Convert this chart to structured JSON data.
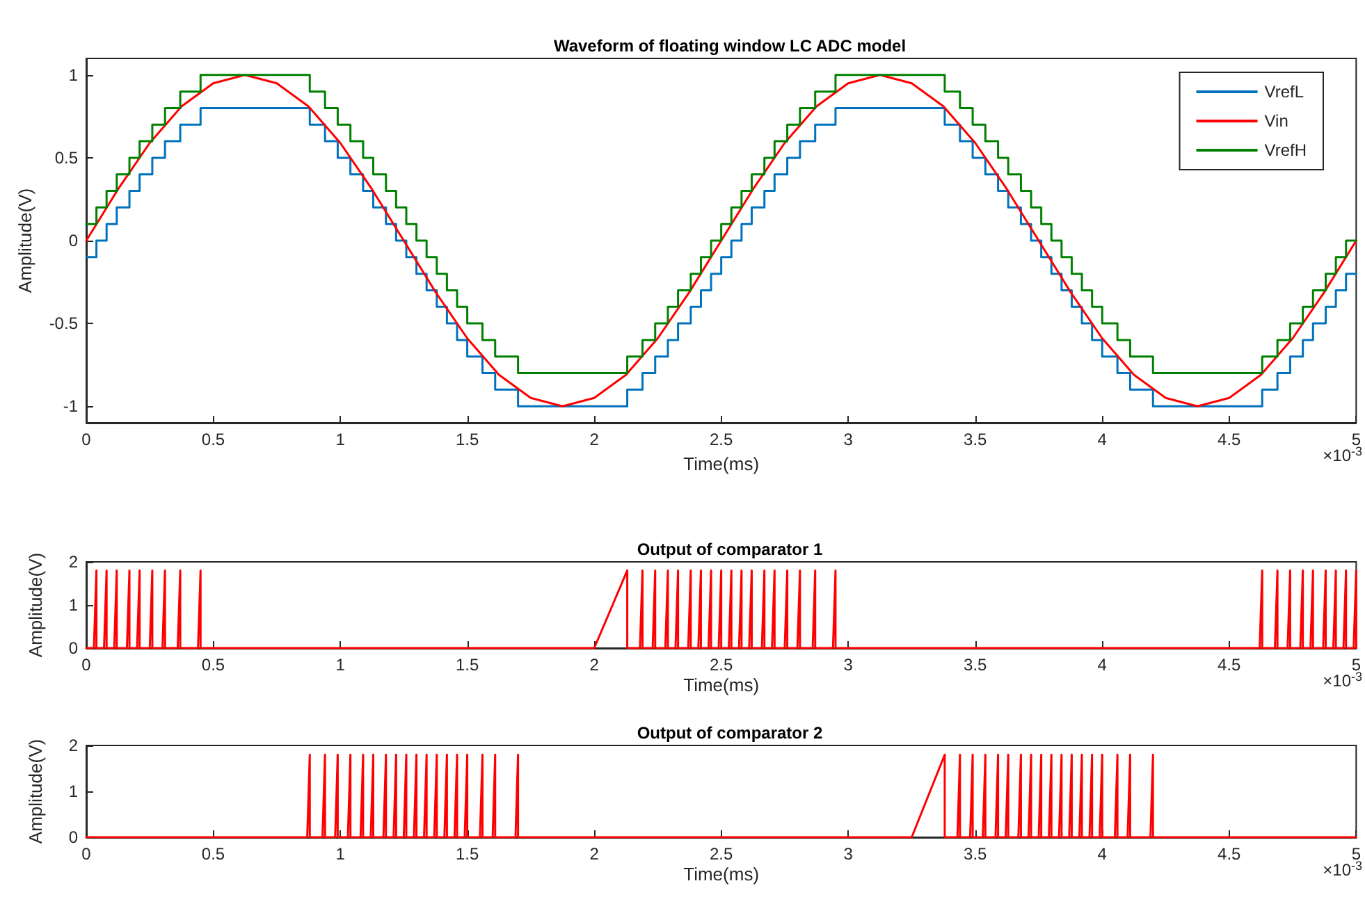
{
  "chart_data": [
    {
      "type": "line",
      "title": "Waveform of floating window LC ADC model",
      "xlabel": "Time(ms)",
      "ylabel": "Amplitude(V)",
      "annotations": [
        "×10$^{-3}$"
      ],
      "xlim": [
        0,
        5
      ],
      "xticks": [
        0,
        0.5,
        1,
        1.5,
        2,
        2.5,
        3,
        3.5,
        4,
        4.5,
        5
      ],
      "ylim": [
        -1.1,
        1.1
      ],
      "yticks": [
        -1,
        -0.5,
        0,
        0.5,
        1
      ],
      "legend": "top right",
      "series": [
        {
          "name": "VrefL",
          "type": "step",
          "color": "#0072bd",
          "x": [
            0,
            0.04,
            0.08,
            0.12,
            0.17,
            0.21,
            0.26,
            0.31,
            0.37,
            0.45,
            0.88,
            0.94,
            0.99,
            1.04,
            1.09,
            1.13,
            1.18,
            1.22,
            1.26,
            1.3,
            1.34,
            1.38,
            1.42,
            1.46,
            1.5,
            1.56,
            1.61,
            1.7,
            2.13,
            2.19,
            2.24,
            2.29,
            2.33,
            2.38,
            2.42,
            2.46,
            2.5,
            2.54,
            2.58,
            2.62,
            2.67,
            2.71,
            2.76,
            2.81,
            2.87,
            2.95,
            3.38,
            3.44,
            3.49,
            3.54,
            3.59,
            3.63,
            3.68,
            3.72,
            3.76,
            3.8,
            3.84,
            3.88,
            3.92,
            3.96,
            4,
            4.06,
            4.11,
            4.2,
            4.63,
            4.69,
            4.74,
            4.79,
            4.83,
            4.88,
            4.92,
            4.96,
            5
          ],
          "values": [
            -0.1,
            0,
            0.1,
            0.2,
            0.3,
            0.4,
            0.5,
            0.6,
            0.7,
            0.8,
            0.7,
            0.6,
            0.5,
            0.4,
            0.3,
            0.2,
            0.1,
            0,
            -0.1,
            -0.2,
            -0.3,
            -0.4,
            -0.5,
            -0.6,
            -0.7,
            -0.8,
            -0.9,
            -1,
            -0.9,
            -0.8,
            -0.7,
            -0.6,
            -0.5,
            -0.4,
            -0.3,
            -0.2,
            -0.1,
            0,
            0.1,
            0.2,
            0.3,
            0.4,
            0.5,
            0.6,
            0.7,
            0.8,
            0.7,
            0.6,
            0.5,
            0.4,
            0.3,
            0.2,
            0.1,
            0,
            -0.1,
            -0.2,
            -0.3,
            -0.4,
            -0.5,
            -0.6,
            -0.7,
            -0.8,
            -0.9,
            -1,
            -0.9,
            -0.8,
            -0.7,
            -0.6,
            -0.5,
            -0.4,
            -0.3,
            -0.2,
            -0.2
          ]
        },
        {
          "name": "Vin",
          "type": "line",
          "color": "#ff0000",
          "x": [
            0,
            0.125,
            0.25,
            0.375,
            0.5,
            0.625,
            0.75,
            0.875,
            1,
            1.125,
            1.25,
            1.375,
            1.5,
            1.625,
            1.75,
            1.875,
            2,
            2.125,
            2.25,
            2.375,
            2.5,
            2.625,
            2.75,
            2.875,
            3,
            3.125,
            3.25,
            3.375,
            3.5,
            3.625,
            3.75,
            3.875,
            4,
            4.125,
            4.25,
            4.375,
            4.5,
            4.625,
            4.75,
            4.875,
            5
          ],
          "values": [
            0,
            0.31,
            0.59,
            0.81,
            0.95,
            1,
            0.95,
            0.81,
            0.59,
            0.31,
            0,
            -0.31,
            -0.59,
            -0.81,
            -0.95,
            -1,
            -0.95,
            -0.81,
            -0.59,
            -0.31,
            0,
            0.31,
            0.59,
            0.81,
            0.95,
            1,
            0.95,
            0.81,
            0.59,
            0.31,
            0,
            -0.31,
            -0.59,
            -0.81,
            -0.95,
            -1,
            -0.95,
            -0.81,
            -0.59,
            -0.31,
            0
          ]
        },
        {
          "name": "VrefH",
          "type": "step",
          "color": "#008000",
          "x": [
            0,
            0.04,
            0.08,
            0.12,
            0.17,
            0.21,
            0.26,
            0.31,
            0.37,
            0.45,
            0.88,
            0.94,
            0.99,
            1.04,
            1.09,
            1.13,
            1.18,
            1.22,
            1.26,
            1.3,
            1.34,
            1.38,
            1.42,
            1.46,
            1.5,
            1.56,
            1.61,
            1.7,
            2.13,
            2.19,
            2.24,
            2.29,
            2.33,
            2.38,
            2.42,
            2.46,
            2.5,
            2.54,
            2.58,
            2.62,
            2.67,
            2.71,
            2.76,
            2.81,
            2.87,
            2.95,
            3.38,
            3.44,
            3.49,
            3.54,
            3.59,
            3.63,
            3.68,
            3.72,
            3.76,
            3.8,
            3.84,
            3.88,
            3.92,
            3.96,
            4,
            4.06,
            4.11,
            4.2,
            4.63,
            4.69,
            4.74,
            4.79,
            4.83,
            4.88,
            4.92,
            4.96,
            5
          ],
          "values": [
            0.1,
            0.2,
            0.3,
            0.4,
            0.5,
            0.6,
            0.7,
            0.8,
            0.9,
            1,
            0.9,
            0.8,
            0.7,
            0.6,
            0.5,
            0.4,
            0.3,
            0.2,
            0.1,
            0,
            -0.1,
            -0.2,
            -0.3,
            -0.4,
            -0.5,
            -0.6,
            -0.7,
            -0.8,
            -0.7,
            -0.6,
            -0.5,
            -0.4,
            -0.3,
            -0.2,
            -0.1,
            0,
            0.1,
            0.2,
            0.3,
            0.4,
            0.5,
            0.6,
            0.7,
            0.8,
            0.9,
            1,
            0.9,
            0.8,
            0.7,
            0.6,
            0.5,
            0.4,
            0.3,
            0.2,
            0.1,
            0,
            -0.1,
            -0.2,
            -0.3,
            -0.4,
            -0.5,
            -0.6,
            -0.7,
            -0.8,
            -0.7,
            -0.6,
            -0.5,
            -0.4,
            -0.3,
            -0.2,
            -0.1,
            0,
            0
          ]
        }
      ]
    },
    {
      "type": "line",
      "title": "Output of comparator 1",
      "xlabel": "Time(ms)",
      "ylabel": "Amplitude(V)",
      "annotations": [
        "×10$^{-3}$"
      ],
      "xlim": [
        0,
        5
      ],
      "xticks": [
        0,
        0.5,
        1,
        1.5,
        2,
        2.5,
        3,
        3.5,
        4,
        4.5,
        5
      ],
      "ylim": [
        0,
        2
      ],
      "yticks": [
        0,
        1,
        2
      ],
      "series": [
        {
          "color": "#ff0000",
          "x": [
            0,
            0.03,
            0.04,
            0.04,
            0.07,
            0.08,
            0.08,
            0.11,
            0.12,
            0.12,
            0.16,
            0.17,
            0.17,
            0.2,
            0.21,
            0.21,
            0.25,
            0.26,
            0.26,
            0.3,
            0.31,
            0.31,
            0.36,
            0.37,
            0.37,
            0.44,
            0.45,
            0.45,
            2,
            2.13,
            2.13,
            2.18,
            2.19,
            2.19,
            2.23,
            2.24,
            2.24,
            2.28,
            2.29,
            2.29,
            2.32,
            2.33,
            2.33,
            2.37,
            2.38,
            2.38,
            2.41,
            2.42,
            2.42,
            2.45,
            2.46,
            2.46,
            2.49,
            2.5,
            2.5,
            2.53,
            2.54,
            2.54,
            2.57,
            2.58,
            2.58,
            2.61,
            2.62,
            2.62,
            2.66,
            2.67,
            2.67,
            2.7,
            2.71,
            2.71,
            2.75,
            2.76,
            2.76,
            2.8,
            2.81,
            2.81,
            2.86,
            2.87,
            2.87,
            2.94,
            2.95,
            2.95,
            4.62,
            4.63,
            4.63,
            4.68,
            4.69,
            4.69,
            4.73,
            4.74,
            4.74,
            4.78,
            4.79,
            4.79,
            4.82,
            4.83,
            4.83,
            4.87,
            4.88,
            4.88,
            4.91,
            4.92,
            4.92,
            4.95,
            4.96,
            4.96,
            4.99,
            5,
            5
          ],
          "values": [
            0,
            0,
            1.8,
            0,
            0,
            1.8,
            0,
            0,
            1.8,
            0,
            0,
            1.8,
            0,
            0,
            1.8,
            0,
            0,
            1.8,
            0,
            0,
            1.8,
            0,
            0,
            1.8,
            0,
            0,
            1.8,
            0,
            0,
            1.8,
            0,
            0,
            1.8,
            0,
            0,
            1.8,
            0,
            0,
            1.8,
            0,
            0,
            1.8,
            0,
            0,
            1.8,
            0,
            0,
            1.8,
            0,
            0,
            1.8,
            0,
            0,
            1.8,
            0,
            0,
            1.8,
            0,
            0,
            1.8,
            0,
            0,
            1.8,
            0,
            0,
            1.8,
            0,
            0,
            1.8,
            0,
            0,
            1.8,
            0,
            0,
            1.8,
            0,
            0,
            1.8,
            0,
            0,
            1.8,
            0,
            0,
            1.8,
            0,
            0,
            1.8,
            0,
            0,
            1.8,
            0,
            0,
            1.8,
            0,
            0,
            1.8,
            0,
            0,
            1.8,
            0,
            0,
            1.8,
            0,
            0,
            1.8,
            0,
            0,
            1.8,
            0
          ]
        }
      ]
    },
    {
      "type": "line",
      "title": "Output of comparator 2",
      "xlabel": "Time(ms)",
      "ylabel": "Amplitude(V)",
      "annotations": [
        "×10$^{-3}$"
      ],
      "xlim": [
        0,
        5
      ],
      "xticks": [
        0,
        0.5,
        1,
        1.5,
        2,
        2.5,
        3,
        3.5,
        4,
        4.5,
        5
      ],
      "ylim": [
        0,
        2
      ],
      "yticks": [
        0,
        1,
        2
      ],
      "series": [
        {
          "color": "#ff0000",
          "x": [
            0,
            0.87,
            0.88,
            0.88,
            0.93,
            0.94,
            0.94,
            0.98,
            0.99,
            0.99,
            1.03,
            1.04,
            1.04,
            1.08,
            1.09,
            1.09,
            1.12,
            1.13,
            1.13,
            1.17,
            1.18,
            1.18,
            1.21,
            1.22,
            1.22,
            1.25,
            1.26,
            1.26,
            1.29,
            1.3,
            1.3,
            1.33,
            1.34,
            1.34,
            1.37,
            1.38,
            1.38,
            1.41,
            1.42,
            1.42,
            1.45,
            1.46,
            1.46,
            1.49,
            1.5,
            1.5,
            1.55,
            1.56,
            1.56,
            1.6,
            1.61,
            1.61,
            1.69,
            1.7,
            1.7,
            3.25,
            3.38,
            3.38,
            3.43,
            3.44,
            3.44,
            3.48,
            3.49,
            3.49,
            3.53,
            3.54,
            3.54,
            3.58,
            3.59,
            3.59,
            3.62,
            3.63,
            3.63,
            3.67,
            3.68,
            3.68,
            3.71,
            3.72,
            3.72,
            3.75,
            3.76,
            3.76,
            3.79,
            3.8,
            3.8,
            3.83,
            3.84,
            3.84,
            3.87,
            3.88,
            3.88,
            3.91,
            3.92,
            3.92,
            3.95,
            3.96,
            3.96,
            3.99,
            4,
            4,
            4.05,
            4.06,
            4.06,
            4.1,
            4.11,
            4.11,
            4.19,
            4.2,
            4.2,
            5
          ],
          "values": [
            0,
            0,
            1.8,
            0,
            0,
            1.8,
            0,
            0,
            1.8,
            0,
            0,
            1.8,
            0,
            0,
            1.8,
            0,
            0,
            1.8,
            0,
            0,
            1.8,
            0,
            0,
            1.8,
            0,
            0,
            1.8,
            0,
            0,
            1.8,
            0,
            0,
            1.8,
            0,
            0,
            1.8,
            0,
            0,
            1.8,
            0,
            0,
            1.8,
            0,
            0,
            1.8,
            0,
            0,
            1.8,
            0,
            0,
            1.8,
            0,
            0,
            1.8,
            0,
            0,
            1.8,
            0,
            0,
            1.8,
            0,
            0,
            1.8,
            0,
            0,
            1.8,
            0,
            0,
            1.8,
            0,
            0,
            1.8,
            0,
            0,
            1.8,
            0,
            0,
            1.8,
            0,
            0,
            1.8,
            0,
            0,
            1.8,
            0,
            0,
            1.8,
            0,
            0,
            1.8,
            0,
            0,
            1.8,
            0,
            0,
            1.8,
            0,
            0,
            1.8,
            0,
            0,
            1.8,
            0,
            0,
            1.8,
            0,
            0,
            1.8,
            0,
            0
          ]
        }
      ]
    }
  ]
}
